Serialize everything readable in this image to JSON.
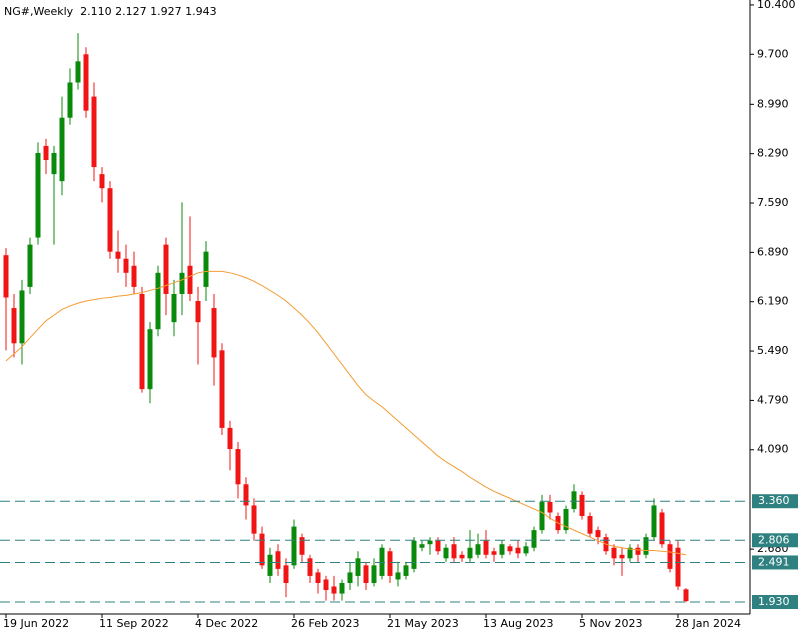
{
  "chart_data": {
    "type": "candlestick",
    "title": "NG#,Weekly  2.110 2.127 1.927 1.943",
    "categories": [
      "19 Jun 2022",
      null,
      null,
      null,
      null,
      null,
      null,
      null,
      null,
      null,
      null,
      null,
      "11 Sep 2022",
      null,
      null,
      null,
      null,
      null,
      null,
      null,
      null,
      null,
      null,
      null,
      "4 Dec 2022",
      null,
      null,
      null,
      null,
      null,
      null,
      null,
      null,
      null,
      null,
      null,
      "26 Feb 2023",
      null,
      null,
      null,
      null,
      null,
      null,
      null,
      null,
      null,
      null,
      null,
      "21 May 2023",
      null,
      null,
      null,
      null,
      null,
      null,
      null,
      null,
      null,
      null,
      null,
      "13 Aug 2023",
      null,
      null,
      null,
      null,
      null,
      null,
      null,
      null,
      null,
      null,
      null,
      "5 Nov 2023",
      null,
      null,
      null,
      null,
      null,
      null,
      null,
      null,
      null,
      null,
      null,
      "28 Jan 2024",
      null
    ],
    "open": [
      6.85,
      6.1,
      5.6,
      6.4,
      7.1,
      8.4,
      8.0,
      7.9,
      8.8,
      9.3,
      9.7,
      9.1,
      8.0,
      7.8,
      6.9,
      6.8,
      6.7,
      6.3,
      4.95,
      5.8,
      7.0,
      5.9,
      6.3,
      6.7,
      6.2,
      6.4,
      6.1,
      5.5,
      4.4,
      4.1,
      3.6,
      3.3,
      2.9,
      2.3,
      2.65,
      2.45,
      2.45,
      2.85,
      2.55,
      2.35,
      2.25,
      2.15,
      2.05,
      2.2,
      2.3,
      2.45,
      2.2,
      2.3,
      2.65,
      2.25,
      2.3,
      2.4,
      2.7,
      2.75,
      2.8,
      2.55,
      2.75,
      2.6,
      2.55,
      2.6,
      2.8,
      2.65,
      2.6,
      2.72,
      2.7,
      2.62,
      2.7,
      2.95,
      3.35,
      3.15,
      2.95,
      3.25,
      3.45,
      3.15,
      2.95,
      2.85,
      2.7,
      2.6,
      2.55,
      2.7,
      2.6,
      2.85,
      3.2,
      2.75,
      2.7,
      2.11
    ],
    "high": [
      6.95,
      6.3,
      6.5,
      7.1,
      8.45,
      8.5,
      8.4,
      9.1,
      9.5,
      10.0,
      9.8,
      9.3,
      8.1,
      7.9,
      7.2,
      7.0,
      6.9,
      6.4,
      5.9,
      6.7,
      7.1,
      6.5,
      7.6,
      7.4,
      6.4,
      7.05,
      6.3,
      5.6,
      4.5,
      4.2,
      3.7,
      3.4,
      3.0,
      2.7,
      2.75,
      2.55,
      3.1,
      2.9,
      2.6,
      2.4,
      2.3,
      2.3,
      2.25,
      2.5,
      2.65,
      2.5,
      2.55,
      2.75,
      2.7,
      2.5,
      2.5,
      2.85,
      2.8,
      2.85,
      2.85,
      2.75,
      2.85,
      2.65,
      2.95,
      2.9,
      2.95,
      2.7,
      2.8,
      2.75,
      2.8,
      2.78,
      3.0,
      3.45,
      3.45,
      3.2,
      3.3,
      3.6,
      3.5,
      3.2,
      3.0,
      2.9,
      2.75,
      2.7,
      2.75,
      2.75,
      2.9,
      3.4,
      3.25,
      2.8,
      2.8,
      2.127
    ],
    "low": [
      5.5,
      5.4,
      5.3,
      6.3,
      7.0,
      8.0,
      7.0,
      7.7,
      8.7,
      9.2,
      8.8,
      7.9,
      7.6,
      6.8,
      6.6,
      6.4,
      6.3,
      4.9,
      4.75,
      5.7,
      6.0,
      5.7,
      6.0,
      6.2,
      5.3,
      6.2,
      5.0,
      4.3,
      3.8,
      3.4,
      3.1,
      2.8,
      2.4,
      2.2,
      2.3,
      2.0,
      2.4,
      2.5,
      2.2,
      2.05,
      1.95,
      1.95,
      1.95,
      2.1,
      2.15,
      2.1,
      2.15,
      2.25,
      2.2,
      2.15,
      2.25,
      2.35,
      2.65,
      2.6,
      2.6,
      2.5,
      2.5,
      2.5,
      2.5,
      2.55,
      2.55,
      2.5,
      2.55,
      2.6,
      2.55,
      2.58,
      2.65,
      2.9,
      3.1,
      2.9,
      2.9,
      3.2,
      3.1,
      2.85,
      2.75,
      2.6,
      2.45,
      2.3,
      2.5,
      2.5,
      2.55,
      2.8,
      2.7,
      2.35,
      2.1,
      1.927
    ],
    "close": [
      6.25,
      5.6,
      6.35,
      7.0,
      8.3,
      8.2,
      8.3,
      8.8,
      9.3,
      9.6,
      8.9,
      8.1,
      7.8,
      6.9,
      6.8,
      6.6,
      6.4,
      4.95,
      5.8,
      6.6,
      6.3,
      6.3,
      6.6,
      6.3,
      5.9,
      6.9,
      5.4,
      4.4,
      4.1,
      3.6,
      3.3,
      2.9,
      2.45,
      2.6,
      2.4,
      2.2,
      3.0,
      2.6,
      2.3,
      2.2,
      2.1,
      2.05,
      2.2,
      2.35,
      2.55,
      2.2,
      2.45,
      2.7,
      2.3,
      2.35,
      2.45,
      2.8,
      2.75,
      2.8,
      2.65,
      2.7,
      2.55,
      2.55,
      2.7,
      2.75,
      2.6,
      2.6,
      2.75,
      2.65,
      2.62,
      2.72,
      2.95,
      3.35,
      3.2,
      2.95,
      3.25,
      3.5,
      3.15,
      2.9,
      2.85,
      2.65,
      2.55,
      2.55,
      2.7,
      2.6,
      2.85,
      3.3,
      2.75,
      2.4,
      2.15,
      1.943
    ],
    "up_color": "#0a8a0a",
    "down_color": "#f01414",
    "moving_average": {
      "color": "#f39c32",
      "values": [
        5.35,
        5.45,
        5.55,
        5.68,
        5.8,
        5.92,
        6.0,
        6.08,
        6.13,
        6.17,
        6.2,
        6.22,
        6.24,
        6.25,
        6.27,
        6.28,
        6.3,
        6.32,
        6.35,
        6.38,
        6.42,
        6.46,
        6.5,
        6.55,
        6.6,
        6.62,
        6.62,
        6.62,
        6.6,
        6.57,
        6.53,
        6.48,
        6.42,
        6.35,
        6.28,
        6.2,
        6.1,
        6.0,
        5.88,
        5.75,
        5.6,
        5.45,
        5.3,
        5.15,
        5.0,
        4.87,
        4.78,
        4.7,
        4.6,
        4.5,
        4.4,
        4.3,
        4.2,
        4.1,
        4.0,
        3.92,
        3.85,
        3.78,
        3.7,
        3.63,
        3.56,
        3.5,
        3.45,
        3.4,
        3.35,
        3.3,
        3.25,
        3.2,
        3.12,
        3.05,
        3.0,
        2.95,
        2.9,
        2.85,
        2.8,
        2.75,
        2.72,
        2.7,
        2.68,
        2.67,
        2.66,
        2.66,
        2.65,
        2.64,
        2.62,
        2.6
      ]
    },
    "levels": [
      {
        "value": 3.36,
        "label": "3.360"
      },
      {
        "value": 2.806,
        "label": "2.806"
      },
      {
        "value": 2.491,
        "label": "2.491"
      },
      {
        "value": 1.93,
        "label": "1.930"
      }
    ],
    "level_color": "#2f8080",
    "ylim": [
      1.76,
      10.47
    ],
    "yticks": [
      {
        "value": 10.4,
        "label": "10.400"
      },
      {
        "value": 9.7,
        "label": "9.700"
      },
      {
        "value": 8.99,
        "label": "8.990"
      },
      {
        "value": 8.29,
        "label": "8.290"
      },
      {
        "value": 7.59,
        "label": "7.590"
      },
      {
        "value": 6.89,
        "label": "6.890"
      },
      {
        "value": 6.19,
        "label": "6.190"
      },
      {
        "value": 5.49,
        "label": "5.490"
      },
      {
        "value": 4.79,
        "label": "4.790"
      },
      {
        "value": 4.09,
        "label": "4.090"
      },
      {
        "value": 2.68,
        "label": "2.680"
      }
    ]
  }
}
